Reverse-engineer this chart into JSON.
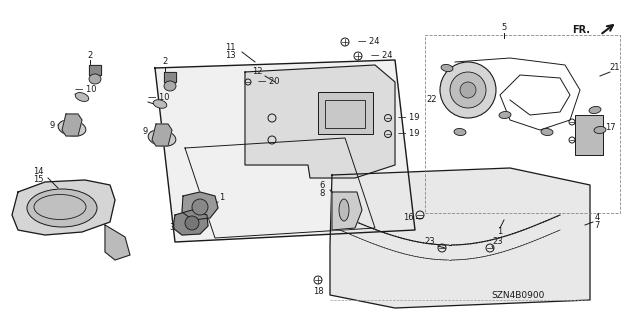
{
  "bg_color": "#ffffff",
  "fig_width": 6.4,
  "fig_height": 3.19,
  "part_number": "SZN4B0900",
  "line_color": "#1a1a1a",
  "gray_fill": "#d8d8d8",
  "light_fill": "#eeeeee"
}
